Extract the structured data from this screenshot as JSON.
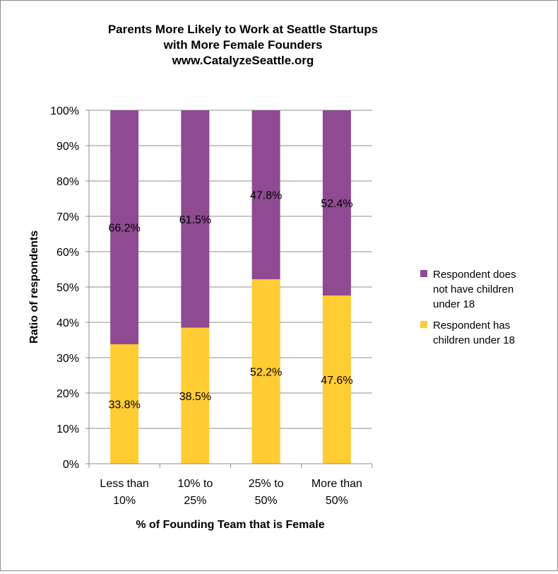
{
  "chart_data": {
    "type": "bar",
    "stacked": true,
    "title": [
      "Parents More Likely to Work at Seattle Startups",
      "with More Female Founders",
      "www.CatalyzeSeattle.org"
    ],
    "xlabel": "% of Founding Team that is Female",
    "ylabel": "Ratio of respondents",
    "ylim": [
      0,
      100
    ],
    "yticks": [
      "0%",
      "10%",
      "20%",
      "30%",
      "40%",
      "50%",
      "60%",
      "70%",
      "80%",
      "90%",
      "100%"
    ],
    "grid": true,
    "legend_position": "right",
    "categories": [
      [
        "Less than",
        "10%"
      ],
      [
        "10% to",
        "25%"
      ],
      [
        "25% to",
        "50%"
      ],
      [
        "More than",
        "50%"
      ]
    ],
    "series": [
      {
        "name": [
          "Respondent has",
          "children under 18"
        ],
        "color": "#ffcc33",
        "values": [
          33.8,
          38.5,
          52.2,
          47.6
        ],
        "labels": [
          "33.8%",
          "38.5%",
          "52.2%",
          "47.6%"
        ]
      },
      {
        "name": [
          "Respondent does",
          "not have children",
          "under 18"
        ],
        "color": "#8e4b92",
        "values": [
          66.2,
          61.5,
          47.8,
          52.4
        ],
        "labels": [
          "66.2%",
          "61.5%",
          "47.8%",
          "52.4%"
        ]
      }
    ]
  }
}
